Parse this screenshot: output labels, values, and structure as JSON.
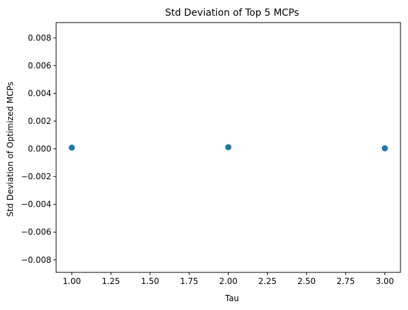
{
  "chart_data": {
    "type": "scatter",
    "title": "Std Deviation of Top 5 MCPs",
    "xlabel": "Tau",
    "ylabel": "Std Deviation of Optimized MCPs",
    "xlim": [
      0.9,
      3.1
    ],
    "ylim": [
      -0.0089,
      0.0091
    ],
    "grid": false,
    "x_ticks": [
      1.0,
      1.25,
      1.5,
      1.75,
      2.0,
      2.25,
      2.5,
      2.75,
      3.0
    ],
    "x_tick_labels": [
      "1.00",
      "1.25",
      "1.50",
      "1.75",
      "2.00",
      "2.25",
      "2.50",
      "2.75",
      "3.00"
    ],
    "y_ticks": [
      -0.008,
      -0.006,
      -0.004,
      -0.002,
      0.0,
      0.002,
      0.004,
      0.006,
      0.008
    ],
    "y_tick_labels": [
      "−0.008",
      "−0.006",
      "−0.004",
      "−0.002",
      "0.000",
      "0.002",
      "0.004",
      "0.006",
      "0.008"
    ],
    "points": [
      {
        "x": 1.0,
        "y": 9e-05
      },
      {
        "x": 2.0,
        "y": 0.00012
      },
      {
        "x": 3.0,
        "y": 4e-05
      }
    ],
    "marker_color": "#1f77b4"
  }
}
